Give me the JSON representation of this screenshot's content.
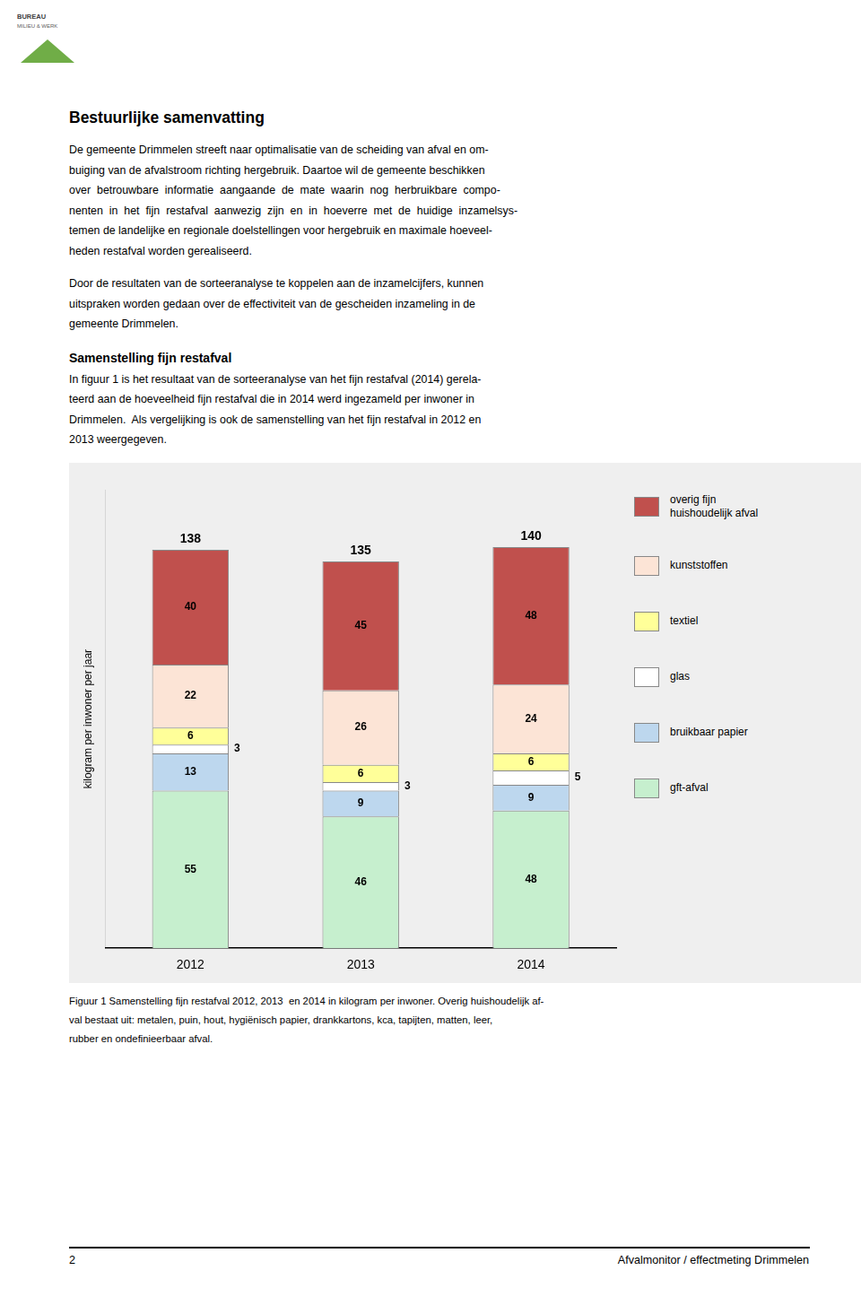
{
  "logo": [
    "BUREAU",
    "MILIEU & WERK"
  ],
  "title": "Bestuurlijke samenvatting",
  "paragraphs": [
    [
      "De gemeente Drimmelen streeft naar optimalisatie van de scheiding van afval en om-",
      "buiging van de afvalstroom richting hergebruik. Daartoe wil de gemeente beschikken",
      "over  betrouwbare  informatie  aangaande  de  mate  waarin  nog  herbruikbare  compo-",
      "nenten  in  het  fijn  restafval  aanwezig  zijn  en  in  hoeverre  met  de  huidige  inzamelsys-",
      "temen de landelijke en regionale doelstellingen voor hergebruik en maximale hoeveel-",
      "heden restafval worden gerealiseerd."
    ],
    [
      "Door de resultaten van de sorteeranalyse te koppelen aan de inzamelcijfers, kunnen",
      "uitspraken worden gedaan over de effectiviteit van de gescheiden inzameling in de",
      "gemeente Drimmelen."
    ]
  ],
  "section_title": "Samenstelling fijn restafval",
  "section_paragraphs": [
    [
      "In figuur 1 is het resultaat van de sorteeranalyse van het fijn restafval (2014) gerela-",
      "teerd aan de hoeveelheid fijn restafval die in 2014 werd ingezameld per inwoner in",
      "Drimmelen.  Als vergelijking is ook de samenstelling van het fijn restafval in 2012 en",
      "2013 weergegeven."
    ]
  ],
  "caption": [
    "Figuur 1 Samenstelling fijn restafval 2012, 2013  en 2014 in kilogram per inwoner. Overig huishoudelijk af-",
    "val bestaat uit: metalen, puin, hout, hygiënisch papier, drankkartons, kca, tapijten, matten, leer,",
    "rubber en ondefinieerbaar afval."
  ],
  "footer_left": "2",
  "footer_right": "Afvalmonitor / effectmeting Drimmelen",
  "chart_data": {
    "type": "bar",
    "stacked": true,
    "categories": [
      "2012",
      "2013",
      "2014"
    ],
    "series": [
      {
        "name": "gft-afval",
        "color": "#c6efce",
        "values": [
          55,
          46,
          48
        ]
      },
      {
        "name": "bruikbaar papier",
        "color": "#bdd7ee",
        "values": [
          13,
          9,
          9
        ]
      },
      {
        "name": "glas",
        "color": "#ffffff",
        "values": [
          3,
          3,
          5
        ]
      },
      {
        "name": "textiel",
        "color": "#ffff99",
        "values": [
          6,
          6,
          6
        ]
      },
      {
        "name": "kunststoffen",
        "color": "#fce4d6",
        "values": [
          22,
          26,
          24
        ]
      },
      {
        "name": "overig fijn\nhuishoudelijk afval",
        "color": "#c0504d",
        "values": [
          40,
          45,
          48
        ]
      }
    ],
    "totals": [
      138,
      135,
      140
    ],
    "ylabel": "kilogram per inwoner per jaar",
    "ylim": [
      0,
      160
    ],
    "grid": false,
    "legend": "right",
    "data_labels": true,
    "tick_labels": "x"
  }
}
